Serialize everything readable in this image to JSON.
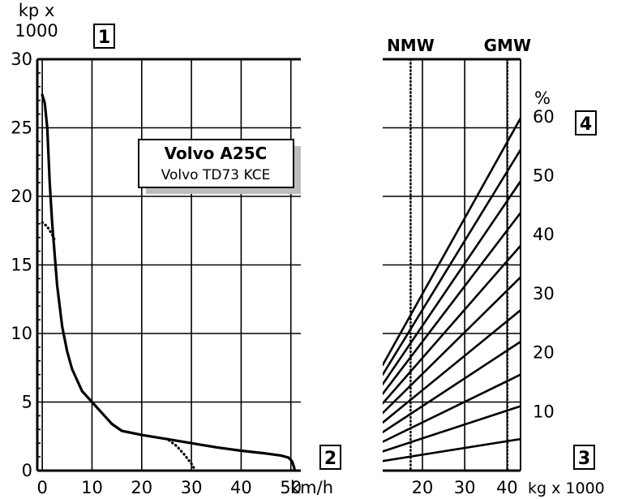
{
  "chart_data": [
    {
      "type": "line",
      "title": "Volvo A25C",
      "subtitle": "Volvo TD73 KCE",
      "ylabel_line1": "kp x",
      "ylabel_line2": "1000",
      "xunit": "km/h",
      "xlim": [
        -1,
        52
      ],
      "ylim": [
        0,
        30
      ],
      "x_ticks": [
        0,
        10,
        20,
        30,
        40,
        50
      ],
      "y_ticks": [
        0,
        5,
        10,
        15,
        20,
        25,
        30
      ],
      "x_tick_labels": [
        "0",
        "10",
        "20",
        "30",
        "40",
        "50"
      ],
      "y_tick_labels": [
        "0",
        "5",
        "10",
        "15",
        "20",
        "25",
        "30"
      ],
      "grid": true,
      "series": [
        {
          "style": "solid",
          "points": [
            [
              0,
              27.4
            ],
            [
              0.5,
              26.8
            ],
            [
              1,
              25
            ],
            [
              1.5,
              21
            ],
            [
              2,
              18
            ],
            [
              3,
              13.5
            ],
            [
              4,
              10.5
            ],
            [
              5,
              8.7
            ],
            [
              6,
              7.4
            ],
            [
              8,
              5.8
            ],
            [
              10,
              5.0
            ],
            [
              12,
              4.2
            ],
            [
              14,
              3.4
            ],
            [
              16,
              2.9
            ],
            [
              20,
              2.6
            ],
            [
              25,
              2.3
            ],
            [
              30,
              2.0
            ],
            [
              35,
              1.7
            ],
            [
              40,
              1.45
            ],
            [
              45,
              1.25
            ],
            [
              48,
              1.1
            ],
            [
              49.5,
              0.95
            ],
            [
              50.2,
              0.7
            ],
            [
              50.6,
              0.3
            ],
            [
              50.8,
              0
            ]
          ]
        },
        {
          "style": "dotted",
          "points": [
            [
              0,
              18.1
            ],
            [
              1,
              17.8
            ],
            [
              2,
              17.2
            ],
            [
              2.4,
              16.9
            ]
          ]
        },
        {
          "style": "dotted",
          "points": [
            [
              25.5,
              2.2
            ],
            [
              27,
              1.8
            ],
            [
              28.5,
              1.2
            ],
            [
              30,
              0.5
            ],
            [
              30.8,
              0
            ]
          ]
        }
      ]
    },
    {
      "type": "line",
      "xunit": "kg x 1000",
      "percent_unit": "%",
      "xlim": [
        10.6,
        43.2
      ],
      "ylim": [
        0,
        30
      ],
      "x_ticks": [
        20,
        30,
        40
      ],
      "x_tick_labels": [
        "20",
        "30",
        "40"
      ],
      "percent_levels": [
        10,
        20,
        30,
        40,
        50,
        60
      ],
      "percent_labels": [
        "10",
        "20",
        "30",
        "40",
        "50",
        "60"
      ],
      "grid": true,
      "reference_lines": [
        {
          "label": "NMW",
          "x": 17.2
        },
        {
          "label": "GMW",
          "x": 40.1
        }
      ],
      "grade_lines": [
        {
          "y_at_xmin": 7.7,
          "y_at_xmax": 25.7
        },
        {
          "y_at_xmin": 7.0,
          "y_at_xmax": 23.4
        },
        {
          "y_at_xmin": 6.3,
          "y_at_xmax": 21.1
        },
        {
          "y_at_xmin": 5.6,
          "y_at_xmax": 18.8
        },
        {
          "y_at_xmin": 4.9,
          "y_at_xmax": 16.4
        },
        {
          "y_at_xmin": 4.2,
          "y_at_xmax": 14.1
        },
        {
          "y_at_xmin": 3.5,
          "y_at_xmax": 11.7
        },
        {
          "y_at_xmin": 2.8,
          "y_at_xmax": 9.4
        },
        {
          "y_at_xmin": 2.1,
          "y_at_xmax": 7.0
        },
        {
          "y_at_xmin": 1.4,
          "y_at_xmax": 4.7
        },
        {
          "y_at_xmin": 0.7,
          "y_at_xmax": 2.3
        }
      ]
    }
  ],
  "markers": [
    "1",
    "2",
    "3",
    "4"
  ]
}
